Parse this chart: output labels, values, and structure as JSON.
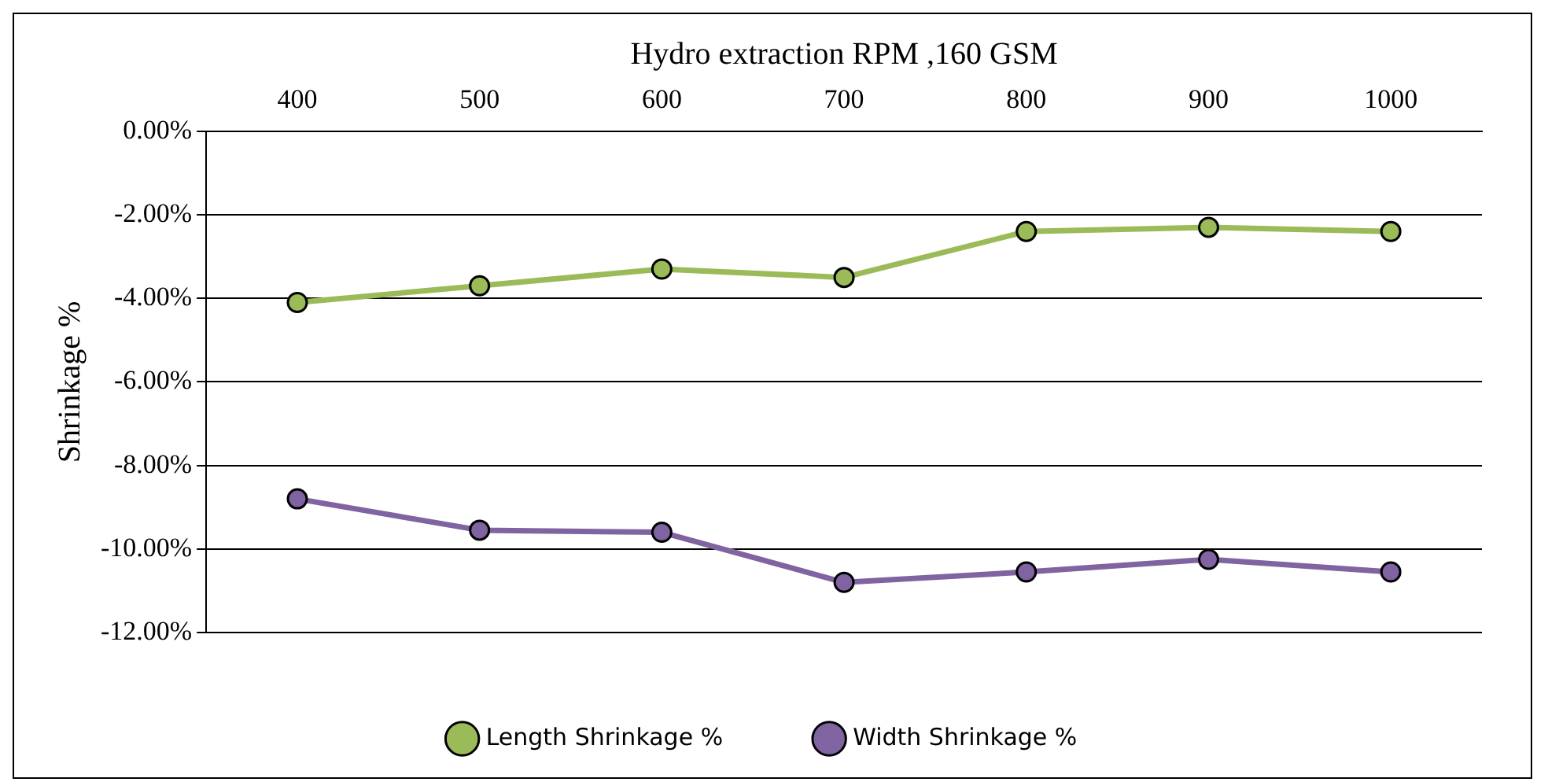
{
  "chart_data": {
    "type": "line",
    "xlabel": "Hydro extraction RPM ,160 GSM",
    "ylabel": "Shrinkage %",
    "categories": [
      "400",
      "500",
      "600",
      "700",
      "800",
      "900",
      "1000"
    ],
    "series": [
      {
        "name": "Length Shrinkage %",
        "color": "#9bbb59",
        "values": [
          -4.1,
          -3.7,
          -3.3,
          -3.5,
          -2.4,
          -2.3,
          -2.4
        ]
      },
      {
        "name": "Width Shrinkage %",
        "color": "#8064a2",
        "values": [
          -8.8,
          -9.55,
          -9.6,
          -10.8,
          -10.55,
          -10.25,
          -10.55
        ]
      }
    ],
    "ylim": [
      -12,
      0
    ],
    "yticks": [
      {
        "value": 0,
        "label": "0.00%"
      },
      {
        "value": -2,
        "label": "-2.00%"
      },
      {
        "value": -4,
        "label": "-4.00%"
      },
      {
        "value": -6,
        "label": "-6.00%"
      },
      {
        "value": -8,
        "label": "-8.00%"
      },
      {
        "value": -10,
        "label": "-10.00%"
      },
      {
        "value": -12,
        "label": "-12.00%"
      }
    ],
    "grid": "y",
    "legend": "bottom",
    "marker": "circle",
    "line_style": "solid"
  }
}
